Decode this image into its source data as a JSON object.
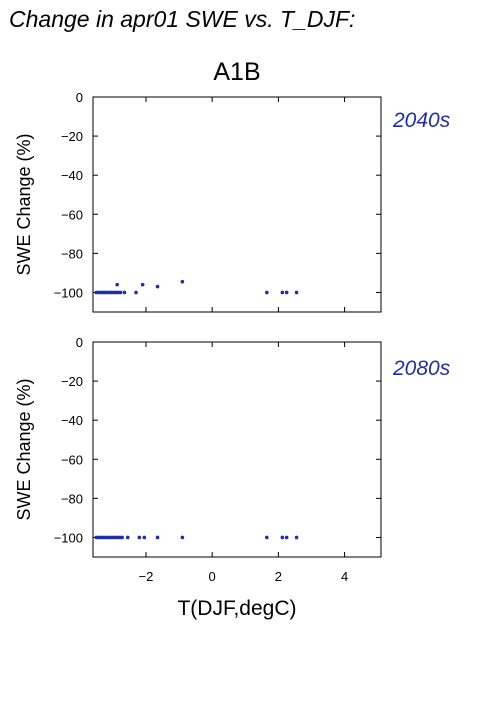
{
  "title": "Change in apr01 SWE vs. T_DJF:",
  "scenario": "A1B",
  "colors": {
    "points": "#1f2fa8",
    "period_label": "#1f2fa8"
  },
  "chart_data": [
    {
      "type": "scatter",
      "period": "2040s",
      "ylabel": "SWE Change (%)",
      "xlabel": "",
      "xlim": [
        -3.6,
        5.1
      ],
      "ylim": [
        -110,
        0
      ],
      "xticks": [
        -2,
        0,
        2,
        4
      ],
      "yticks": [
        0,
        -20,
        -40,
        -60,
        -80,
        -100
      ],
      "ytick_labels": [
        "0",
        "−20",
        "−40",
        "−60",
        "−80",
        "−100"
      ],
      "xtick_labels_visible": false,
      "grid": false,
      "points": [
        {
          "x": -3.5,
          "y": -100
        },
        {
          "x": -3.42,
          "y": -100
        },
        {
          "x": -3.36,
          "y": -100
        },
        {
          "x": -3.3,
          "y": -100
        },
        {
          "x": -3.24,
          "y": -100
        },
        {
          "x": -3.17,
          "y": -100
        },
        {
          "x": -3.1,
          "y": -100
        },
        {
          "x": -3.04,
          "y": -100
        },
        {
          "x": -2.97,
          "y": -100
        },
        {
          "x": -2.9,
          "y": -100
        },
        {
          "x": -2.84,
          "y": -100
        },
        {
          "x": -2.77,
          "y": -100
        },
        {
          "x": -2.65,
          "y": -100
        },
        {
          "x": -2.3,
          "y": -100
        },
        {
          "x": -2.87,
          "y": -96
        },
        {
          "x": -2.1,
          "y": -96
        },
        {
          "x": -1.65,
          "y": -97
        },
        {
          "x": -0.9,
          "y": -94.5
        },
        {
          "x": 1.65,
          "y": -100
        },
        {
          "x": 2.12,
          "y": -100
        },
        {
          "x": 2.25,
          "y": -100
        },
        {
          "x": 2.55,
          "y": -100
        }
      ]
    },
    {
      "type": "scatter",
      "period": "2080s",
      "ylabel": "SWE Change (%)",
      "xlabel": "T(DJF,degC)",
      "xlim": [
        -3.6,
        5.1
      ],
      "ylim": [
        -110,
        0
      ],
      "xticks": [
        -2,
        0,
        2,
        4
      ],
      "xtick_labels": [
        "−2",
        "0",
        "2",
        "4"
      ],
      "yticks": [
        0,
        -20,
        -40,
        -60,
        -80,
        -100
      ],
      "ytick_labels": [
        "0",
        "−20",
        "−40",
        "−60",
        "−80",
        "−100"
      ],
      "xtick_labels_visible": true,
      "grid": false,
      "points": [
        {
          "x": -3.5,
          "y": -100
        },
        {
          "x": -3.42,
          "y": -100
        },
        {
          "x": -3.35,
          "y": -100
        },
        {
          "x": -3.28,
          "y": -100
        },
        {
          "x": -3.21,
          "y": -100
        },
        {
          "x": -3.14,
          "y": -100
        },
        {
          "x": -3.07,
          "y": -100
        },
        {
          "x": -3.0,
          "y": -100
        },
        {
          "x": -2.93,
          "y": -100
        },
        {
          "x": -2.86,
          "y": -100
        },
        {
          "x": -2.79,
          "y": -100
        },
        {
          "x": -2.72,
          "y": -100
        },
        {
          "x": -2.55,
          "y": -100
        },
        {
          "x": -2.2,
          "y": -100
        },
        {
          "x": -2.05,
          "y": -100
        },
        {
          "x": -1.65,
          "y": -100
        },
        {
          "x": -0.9,
          "y": -100
        },
        {
          "x": 1.65,
          "y": -100
        },
        {
          "x": 2.12,
          "y": -100
        },
        {
          "x": 2.25,
          "y": -100
        },
        {
          "x": 2.55,
          "y": -100
        }
      ]
    }
  ]
}
